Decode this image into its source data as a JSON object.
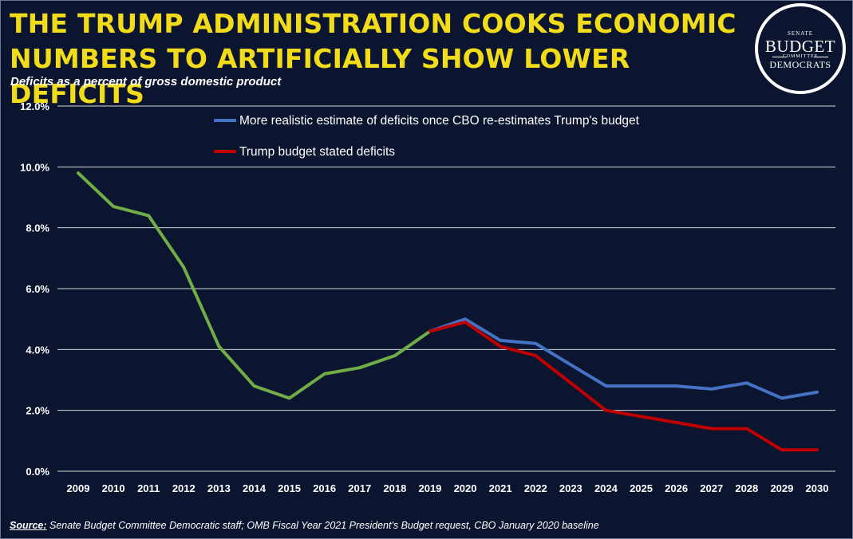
{
  "header": {
    "title_line1": "THE TRUMP ADMINISTRATION COOKS ECONOMIC",
    "title_line2": "NUMBERS TO ARTIFICIALLY SHOW LOWER DEFICITS",
    "subtitle": "Deficits as a percent of gross domestic product"
  },
  "logo": {
    "senate": "SENATE",
    "budget": "BUDGET",
    "committee": "COMMITTEE",
    "democrats": "DEMOCRATS"
  },
  "footer": {
    "source_label": "Source:",
    "source_text": " Senate Budget Committee Democratic staff; OMB Fiscal Year 2021 President's Budget request, CBO January 2020 baseline"
  },
  "chart_data": {
    "type": "line",
    "title": "",
    "xlabel": "",
    "ylabel": "",
    "ylim": [
      0,
      12
    ],
    "yticks": [
      "0.0%",
      "2.0%",
      "4.0%",
      "6.0%",
      "8.0%",
      "10.0%",
      "12.0%"
    ],
    "ytick_values": [
      0,
      2,
      4,
      6,
      8,
      10,
      12
    ],
    "x": [
      2009,
      2010,
      2011,
      2012,
      2013,
      2014,
      2015,
      2016,
      2017,
      2018,
      2019,
      2020,
      2021,
      2022,
      2023,
      2024,
      2025,
      2026,
      2027,
      2028,
      2029,
      2030
    ],
    "grid": true,
    "legend_position": "top-center",
    "series": [
      {
        "name": "",
        "color": "#70ad47",
        "x": [
          2009,
          2010,
          2011,
          2012,
          2013,
          2014,
          2015,
          2016,
          2017,
          2018,
          2019
        ],
        "values": [
          9.8,
          8.7,
          8.4,
          6.7,
          4.1,
          2.8,
          2.4,
          3.2,
          3.4,
          3.8,
          4.6
        ]
      },
      {
        "name": "More realistic estimate of deficits once CBO re-estimates Trump's budget",
        "color": "#4472c4",
        "x": [
          2019,
          2020,
          2021,
          2022,
          2023,
          2024,
          2025,
          2026,
          2027,
          2028,
          2029,
          2030
        ],
        "values": [
          4.6,
          5.0,
          4.3,
          4.2,
          3.5,
          2.8,
          2.8,
          2.8,
          2.7,
          2.9,
          2.4,
          2.6
        ]
      },
      {
        "name": "Trump budget stated deficits",
        "color": "#c00000",
        "x": [
          2019,
          2020,
          2021,
          2022,
          2023,
          2024,
          2025,
          2026,
          2027,
          2028,
          2029,
          2030
        ],
        "values": [
          4.6,
          4.9,
          4.1,
          3.8,
          2.9,
          2.0,
          1.8,
          1.6,
          1.4,
          1.4,
          0.7,
          0.7
        ]
      }
    ]
  }
}
